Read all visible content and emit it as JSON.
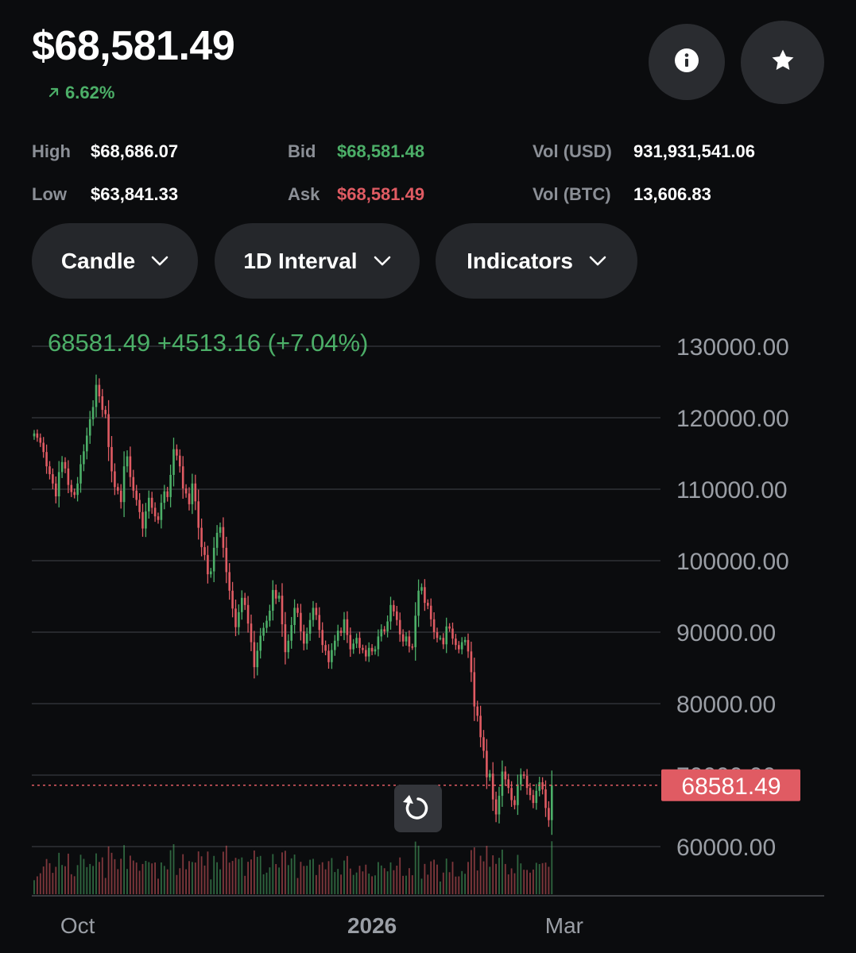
{
  "header": {
    "price": "$68,581.49",
    "change_pct": "6.62%",
    "info_icon": "info-icon",
    "star_icon": "star-icon"
  },
  "stats": {
    "high_label": "High",
    "high_value": "$68,686.07",
    "low_label": "Low",
    "low_value": "$63,841.33",
    "bid_label": "Bid",
    "bid_value": "$68,581.48",
    "ask_label": "Ask",
    "ask_value": "$68,581.49",
    "vol_usd_label": "Vol (USD)",
    "vol_usd_value": "931,931,541.06",
    "vol_btc_label": "Vol (BTC)",
    "vol_btc_value": "13,606.83"
  },
  "controls": {
    "chart_type": "Candle",
    "interval": "1D Interval",
    "indicators": "Indicators"
  },
  "colors": {
    "up": "#4caf68",
    "down": "#e05b63",
    "background": "#0b0c0e",
    "pill": "#25272b"
  },
  "chart_data": {
    "type": "candlestick",
    "summary": "68581.49  +4513.16 (+7.04%)",
    "y_ticks": [
      "130000.00",
      "120000.00",
      "110000.00",
      "100000.00",
      "90000.00",
      "80000.00",
      "70000.00",
      "60000.00"
    ],
    "y_tick_values": [
      130000,
      120000,
      110000,
      100000,
      90000,
      80000,
      70000,
      60000
    ],
    "ylim": [
      53333,
      130000
    ],
    "x_ticks": [
      {
        "label": "Oct",
        "index": 14
      },
      {
        "label": "2026",
        "index": 109
      },
      {
        "label": "Mar",
        "index": 171
      }
    ],
    "current_price_label": "68581.49",
    "current_price": 68581.49,
    "grid": true,
    "closes": [
      117800,
      117200,
      116500,
      115200,
      113200,
      112100,
      110800,
      109000,
      112400,
      113800,
      112900,
      110600,
      109600,
      109200,
      110800,
      113500,
      115300,
      117500,
      119800,
      121500,
      124600,
      123000,
      121100,
      120500,
      115900,
      112500,
      110300,
      109800,
      108200,
      113200,
      114600,
      111700,
      109800,
      108500,
      106800,
      104500,
      106900,
      108800,
      107400,
      106200,
      105700,
      108100,
      109700,
      108900,
      112000,
      115600,
      114700,
      113200,
      110100,
      109400,
      107900,
      110800,
      108300,
      104600,
      101900,
      100800,
      98100,
      98500,
      101800,
      103900,
      104700,
      101800,
      98400,
      95800,
      93300,
      90700,
      92800,
      94800,
      93800,
      91200,
      88600,
      85100,
      87400,
      89500,
      90600,
      91600,
      93000,
      95900,
      94700,
      95100,
      91100,
      87200,
      88800,
      91000,
      93400,
      92700,
      90100,
      88400,
      89800,
      91700,
      93400,
      92400,
      90300,
      88200,
      87400,
      85800,
      87500,
      88800,
      90200,
      89900,
      91800,
      89600,
      87600,
      88400,
      89200,
      87800,
      87500,
      86600,
      87800,
      87300,
      87600,
      89400,
      90400,
      90100,
      91500,
      93800,
      92900,
      91700,
      89700,
      88700,
      89400,
      88000,
      87900,
      92300,
      95800,
      96300,
      94100,
      93700,
      91800,
      90000,
      89200,
      89200,
      88300,
      90800,
      90500,
      89100,
      88200,
      87600,
      88600,
      88900,
      87300,
      84400,
      79600,
      78300,
      75300,
      73400,
      69700,
      70200,
      66600,
      64500,
      67100,
      70500,
      69400,
      68200,
      66500,
      65800,
      68700,
      70100,
      69900,
      68200,
      67200,
      66100,
      67800,
      69000,
      68000,
      65400,
      63700,
      68581
    ]
  }
}
